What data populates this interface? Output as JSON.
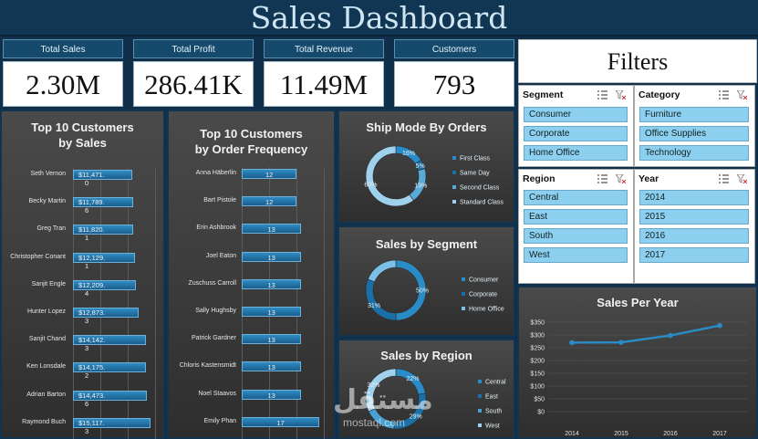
{
  "header": {
    "title": "Sales Dashboard"
  },
  "kpis": [
    {
      "label": "Total Sales",
      "value": "2.30M"
    },
    {
      "label": "Total Profit",
      "value": "286.41K"
    },
    {
      "label": "Total Revenue",
      "value": "11.49M"
    },
    {
      "label": "Customers",
      "value": "793"
    }
  ],
  "filters": {
    "title": "Filters",
    "slicers": [
      {
        "name": "Segment",
        "items": [
          "Consumer",
          "Corporate",
          "Home Office"
        ]
      },
      {
        "name": "Category",
        "items": [
          "Furniture",
          "Office Supplies",
          "Technology"
        ]
      },
      {
        "name": "Region",
        "items": [
          "Central",
          "East",
          "South",
          "West"
        ]
      },
      {
        "name": "Year",
        "items": [
          "2014",
          "2015",
          "2016",
          "2017"
        ]
      }
    ]
  },
  "colors": {
    "accent": "#1f74a8",
    "bar": "#2f8cc4",
    "slicer_item": "#8dcfef"
  },
  "watermark": {
    "text_ar": "مستقل",
    "text": "mostaql.com"
  },
  "chart_data": [
    {
      "type": "bar",
      "orientation": "horizontal",
      "title": "Top 10 Customers by Sales",
      "title_lines": [
        "Top 10 Customers",
        "by Sales"
      ],
      "categories": [
        "Seth Vernon",
        "Becky Martin",
        "Greg Tran",
        "Christopher Conant",
        "Sanjit Engle",
        "Hunter Lopez",
        "Sanjit Chand",
        "Ken Lonsdale",
        "Adrian Barton",
        "Raymond Buch"
      ],
      "values": [
        11471.0,
        11789.6,
        11820.1,
        12129.1,
        12209.4,
        12873.3,
        14142.3,
        14175.2,
        14473.6,
        15117.3
      ],
      "value_labels": [
        [
          "$11,471.",
          "0"
        ],
        [
          "$11,789.",
          "6"
        ],
        [
          "$11,820.",
          "1"
        ],
        [
          "$12,129.",
          "1"
        ],
        [
          "$12,209.",
          "4"
        ],
        [
          "$12,873.",
          "3"
        ],
        [
          "$14,142.",
          "3"
        ],
        [
          "$14,175.",
          "2"
        ],
        [
          "$14,473.",
          "6"
        ],
        [
          "$15,117.",
          "3"
        ]
      ],
      "xlim": [
        0,
        16000
      ]
    },
    {
      "type": "bar",
      "orientation": "horizontal",
      "title": "Top 10 Customers by Order Frequency",
      "title_lines": [
        "Top 10 Customers",
        "by Order Frequency"
      ],
      "categories": [
        "Anna Häberlin",
        "Bart Pistole",
        "Erin Ashbrook",
        "Joel Eaton",
        "Zuschuss Carroll",
        "Sally Hughsby",
        "Patrick Gardner",
        "Chloris Kastensmidt",
        "Noel Staavos",
        "Emily Phan"
      ],
      "values": [
        12,
        12,
        13,
        13,
        13,
        13,
        13,
        13,
        13,
        17
      ],
      "xlim": [
        0,
        18
      ]
    },
    {
      "type": "pie",
      "variant": "donut",
      "title": "Ship Mode By Orders",
      "categories": [
        "First Class",
        "Same Day",
        "Second Class",
        "Standard Class"
      ],
      "values": [
        16,
        5,
        19,
        60
      ],
      "slice_labels": [
        "16%",
        "5%",
        "19%",
        "60%"
      ],
      "colors": [
        "#2a8cc6",
        "#1b6fa6",
        "#5aaad6",
        "#9fd0ec"
      ],
      "legend": "right"
    },
    {
      "type": "pie",
      "variant": "donut",
      "title": "Sales by Segment",
      "categories": [
        "Consumer",
        "Corporate",
        "Home Office"
      ],
      "values": [
        50,
        31,
        19
      ],
      "slice_labels": [
        "50%",
        "31%",
        ""
      ],
      "colors": [
        "#2a8cc6",
        "#1b6fa6",
        "#7cc0e6"
      ],
      "legend": "right"
    },
    {
      "type": "pie",
      "variant": "donut",
      "title": "Sales by Region",
      "categories": [
        "Central",
        "East",
        "South",
        "West"
      ],
      "values": [
        22,
        29,
        17,
        32
      ],
      "slice_labels": [
        "22%",
        "29%",
        "",
        "32%"
      ],
      "colors": [
        "#2a8cc6",
        "#1b6fa6",
        "#4aa0d2",
        "#9fd0ec"
      ],
      "legend": "right"
    },
    {
      "type": "line",
      "title": "Sales Per Year",
      "x": [
        "2014",
        "2015",
        "2016",
        "2017"
      ],
      "values": [
        270,
        271,
        298,
        337
      ],
      "y_ticks": [
        "$0",
        "$50",
        "$100",
        "$150",
        "$200",
        "$250",
        "$300",
        "$350"
      ],
      "ylim": [
        0,
        350
      ]
    }
  ]
}
